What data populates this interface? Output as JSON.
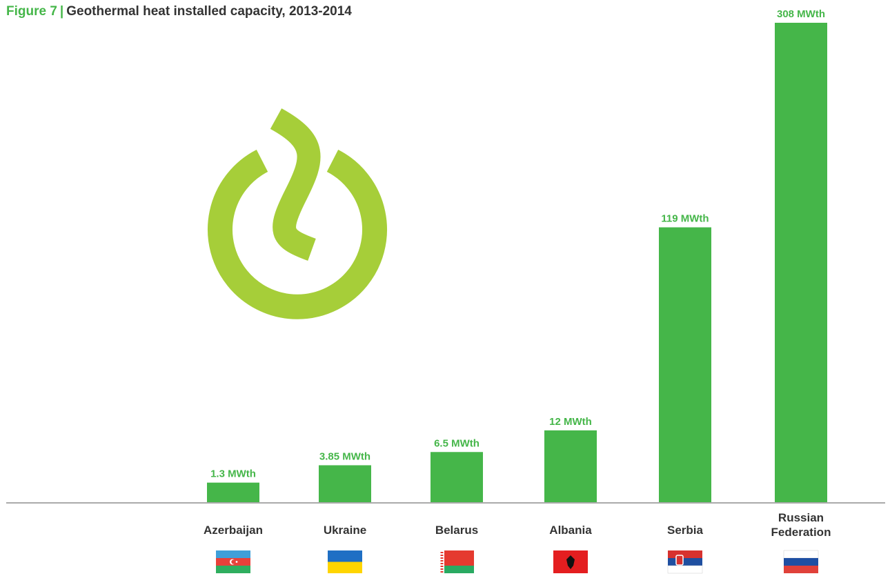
{
  "figure": {
    "number_label": "Figure 7",
    "separator": "|",
    "title": "Geothermal heat installed capacity, 2013-2014"
  },
  "chart_data": {
    "type": "bar",
    "title": "Geothermal heat installed capacity, 2013-2014",
    "xlabel": "",
    "ylabel": "",
    "unit": "MWth",
    "categories": [
      "Azerbaijan",
      "Ukraine",
      "Belarus",
      "Albania",
      "Serbia",
      "Russian Federation"
    ],
    "category_lines": [
      [
        "Azerbaijan"
      ],
      [
        "Ukraine"
      ],
      [
        "Belarus"
      ],
      [
        "Albania"
      ],
      [
        "Serbia"
      ],
      [
        "Russian",
        "Federation"
      ]
    ],
    "values": [
      1.3,
      3.85,
      6.5,
      12,
      119,
      308
    ],
    "data_labels": [
      "1.3 MWth",
      "3.85 MWth",
      "6.5 MWth",
      "12 MWth",
      "119 MWth",
      "308 MWth"
    ],
    "scale": "nonlinear (bar heights not proportional to values)",
    "grid": false,
    "legend": "none",
    "bar_color": "#45b649",
    "label_color": "#45b649"
  },
  "flags": [
    "azerbaijan-flag",
    "ukraine-flag",
    "belarus-flag",
    "albania-flag",
    "serbia-flag",
    "russia-flag"
  ],
  "logo": {
    "name": "geothermal-logo",
    "color": "#a6ce39"
  }
}
